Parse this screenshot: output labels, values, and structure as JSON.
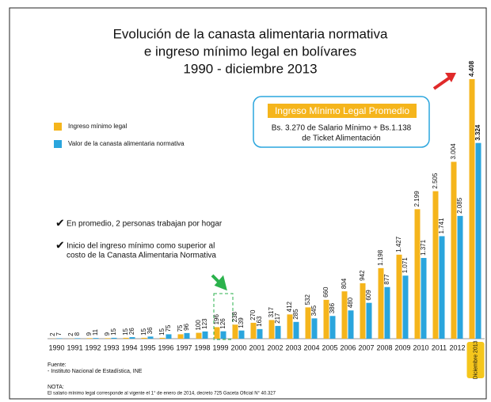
{
  "chart_data": {
    "type": "bar",
    "title": [
      "Evolución de la canasta alimentaria normativa",
      "e ingreso mínimo legal en bolívares",
      "1990 - diciembre 2013"
    ],
    "categories": [
      "1990",
      "1991",
      "1992",
      "1993",
      "1994",
      "1995",
      "1996",
      "1997",
      "1998",
      "1999",
      "2000",
      "2001",
      "2002",
      "2003",
      "2004",
      "2005",
      "2006",
      "2007",
      "2008",
      "2009",
      "2010",
      "2011",
      "2012",
      "Diciembre 2013"
    ],
    "series": [
      {
        "name": "Ingreso mínimo legal",
        "color": "#f5b51c",
        "values": [
          2,
          2,
          9,
          9,
          15,
          15,
          15,
          75,
          100,
          196,
          238,
          270,
          317,
          412,
          532,
          660,
          804,
          942,
          1198,
          1427,
          2199,
          2505,
          3004,
          4408
        ],
        "value_labels": [
          "2",
          "2",
          "9",
          "9",
          "15",
          "15",
          "15",
          "75",
          "100",
          "196",
          "238",
          "270",
          "317",
          "412",
          "532",
          "660",
          "804",
          "942",
          "1.198",
          "1.427",
          "2.199",
          "2.505",
          "3.004",
          "4.408"
        ]
      },
      {
        "name": "Valor de la canasta alimentaria normativa",
        "color": "#2aa5dd",
        "values": [
          7,
          8,
          11,
          15,
          26,
          36,
          75,
          96,
          123,
          126,
          139,
          163,
          217,
          285,
          345,
          386,
          480,
          609,
          877,
          1071,
          1371,
          1741,
          2085,
          3324
        ],
        "value_labels": [
          "7",
          "8",
          "11",
          "15",
          "26",
          "36",
          "75",
          "96",
          "123",
          "126",
          "139",
          "163",
          "217",
          "285",
          "345",
          "386",
          "480",
          "609",
          "877",
          "1.071",
          "1.371",
          "1.741",
          "2.085",
          "3.324"
        ]
      }
    ],
    "callout": {
      "title": "Ingreso Mínimo Legal Promedio",
      "lines": [
        "Bs. 3.270 de Salario Mínimo + Bs.1.138",
        "de Ticket Alimentación"
      ]
    },
    "notes": [
      "En promedio, 2 personas trabajan por hogar",
      [
        "Inicio del ingreso mínimo como superior al",
        "costo de la Canasta Alimentaria Normativa"
      ]
    ],
    "source": [
      "Fuente:",
      "- Instituto Nacional de Estadística, INE"
    ],
    "nota": [
      "NOTA:",
      "El salario mínimo legal corresponde al vigente el 1° de enero de 2014, decreto 725 Gaceta Oficial N° 40.327"
    ]
  }
}
